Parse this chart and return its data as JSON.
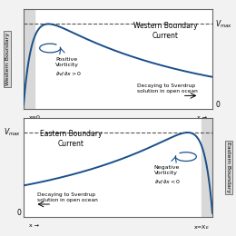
{
  "fig_width": 2.6,
  "fig_height": 2.6,
  "dpi": 100,
  "bg_color": "#f2f2f2",
  "plot_bg": "#ffffff",
  "curve_color": "#1a4f8a",
  "curve_lw": 1.4,
  "dashed_color": "#555555",
  "boundary_bg": "#d8d8d8",
  "western_label": "Western Boundary",
  "eastern_label": "Eastern Boundary",
  "top_title": "Western Boundary\nCurrent",
  "bottom_title": "Eastern Boundary\nCurrent",
  "top_vort_text": "Positive\nVorticity\n∂v/∂x > 0",
  "bottom_vort_text": "Negative\nVorticity\n∂v/∂x < 0",
  "top_decay_text": "Decaying to Sverdrup\nsolution in open ocean",
  "bottom_decay_text": "Decaying to Sverdrup\nsolution in open ocean"
}
